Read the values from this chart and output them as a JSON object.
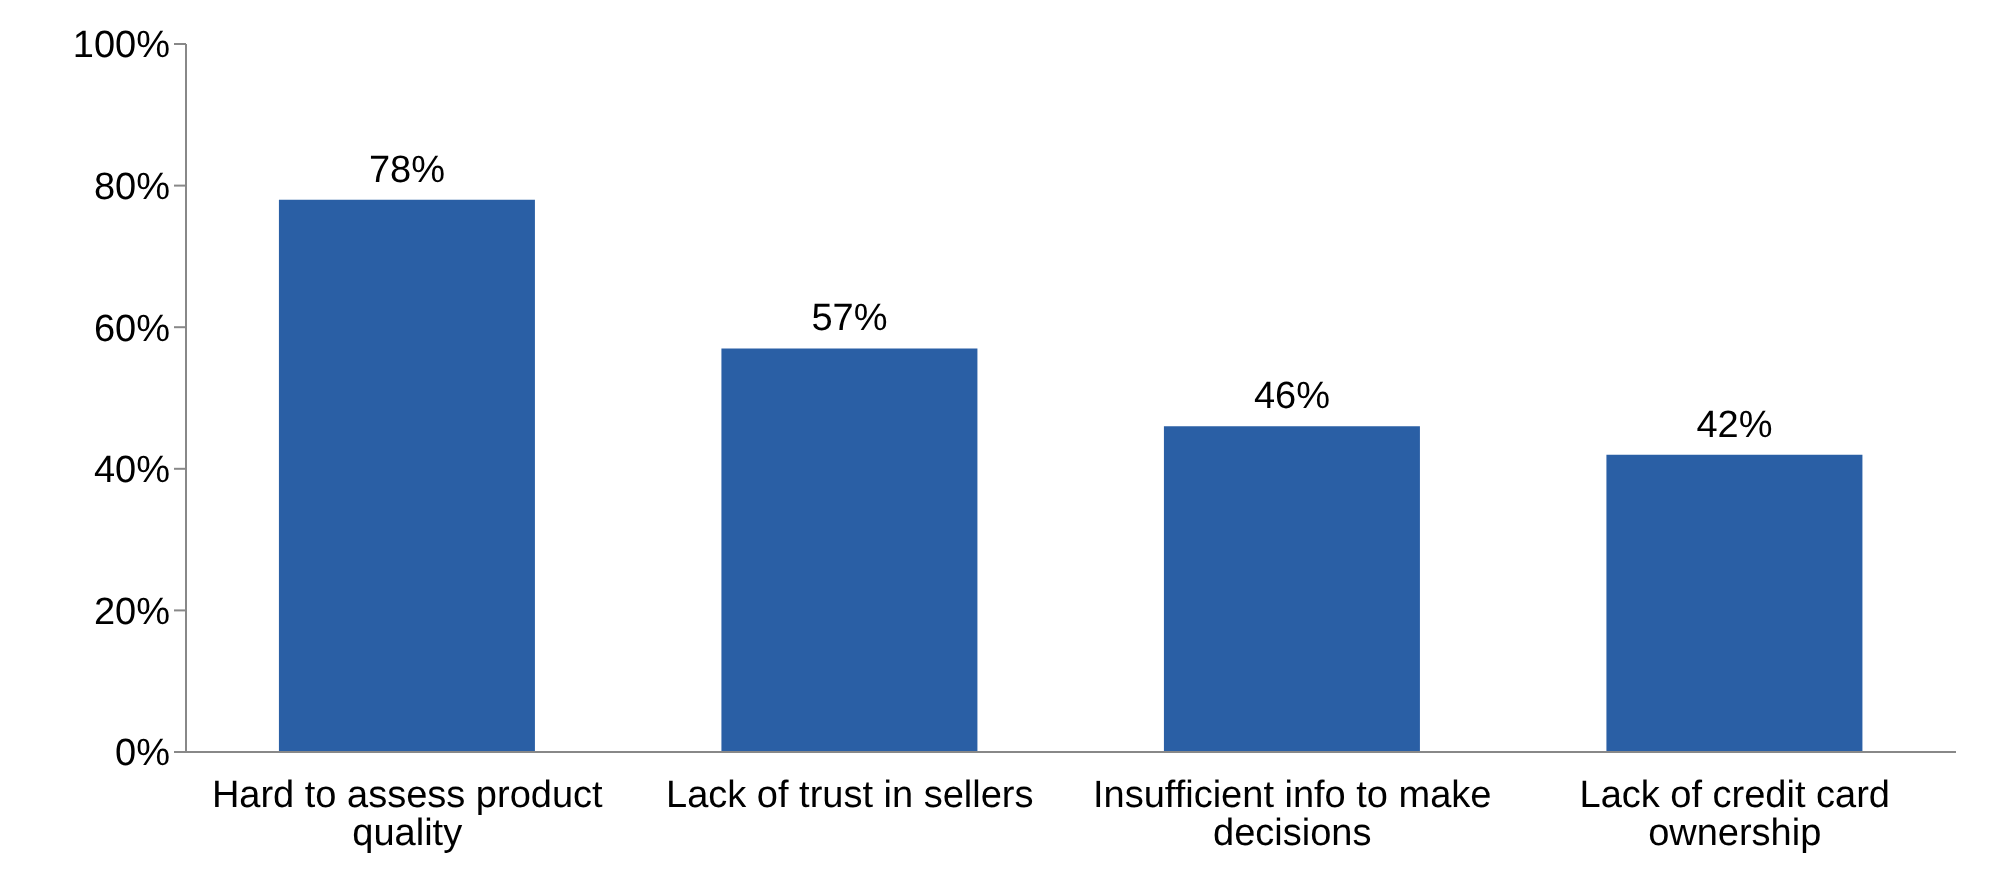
{
  "chart_data": {
    "type": "bar",
    "categories": [
      "Hard to assess product quality",
      "Lack of trust in sellers",
      "Insufficient info to make decisions",
      "Lack of credit card ownership"
    ],
    "values": [
      78,
      57,
      46,
      42
    ],
    "value_labels": [
      "78%",
      "57%",
      "46%",
      "42%"
    ],
    "color": "#2a5fa5",
    "ylim": [
      0,
      100
    ],
    "yticks": [
      {
        "value": 0,
        "label": "0%"
      },
      {
        "value": 20,
        "label": "20%"
      },
      {
        "value": 40,
        "label": "40%"
      },
      {
        "value": 60,
        "label": "60%"
      },
      {
        "value": 80,
        "label": "80%"
      },
      {
        "value": 100,
        "label": "100%"
      }
    ],
    "grid": false,
    "legend": false
  }
}
